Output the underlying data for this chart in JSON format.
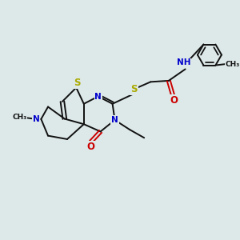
{
  "bg_color": "#dde8e8",
  "bond_color": "#111111",
  "S_color": "#aaaa00",
  "N_color": "#0000cc",
  "O_color": "#cc0000",
  "H_color": "#336666",
  "line_width": 1.4,
  "font_size": 7.5,
  "fig_w": 3.0,
  "fig_h": 3.0,
  "dpi": 100,
  "xlim": [
    0,
    10
  ],
  "ylim": [
    0,
    10
  ]
}
